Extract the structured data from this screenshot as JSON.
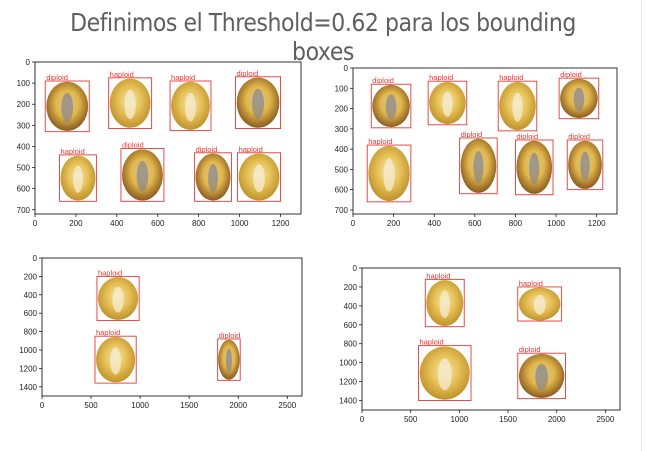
{
  "slide": {
    "title": "Definimos el Threshold=0.62 para los bounding boxes"
  },
  "colors": {
    "box": "#e53935",
    "label": "#e53935",
    "axis": "#000000",
    "tick_text": "#222222"
  },
  "chart_data": [
    {
      "type": "detection-image",
      "xlim": [
        0,
        1300
      ],
      "ylim": [
        720,
        0
      ],
      "xticks": [
        0,
        200,
        400,
        600,
        800,
        1000,
        1200
      ],
      "yticks": [
        0,
        100,
        200,
        300,
        400,
        500,
        600,
        700
      ],
      "detections": [
        {
          "label": "diploid",
          "x0": 50,
          "y0": 90,
          "x1": 265,
          "y1": 330
        },
        {
          "label": "haploid",
          "x0": 360,
          "y0": 75,
          "x1": 570,
          "y1": 315
        },
        {
          "label": "haploid",
          "x0": 660,
          "y0": 90,
          "x1": 860,
          "y1": 325
        },
        {
          "label": "diploid",
          "x0": 980,
          "y0": 70,
          "x1": 1200,
          "y1": 315
        },
        {
          "label": "haploid",
          "x0": 120,
          "y0": 440,
          "x1": 300,
          "y1": 660
        },
        {
          "label": "diploid",
          "x0": 420,
          "y0": 410,
          "x1": 630,
          "y1": 660
        },
        {
          "label": "diploid",
          "x0": 780,
          "y0": 430,
          "x1": 960,
          "y1": 660
        },
        {
          "label": "haploid",
          "x0": 990,
          "y0": 430,
          "x1": 1200,
          "y1": 660
        }
      ]
    },
    {
      "type": "detection-image",
      "xlim": [
        0,
        1300
      ],
      "ylim": [
        720,
        0
      ],
      "xticks": [
        0,
        200,
        400,
        600,
        800,
        1000,
        1200
      ],
      "yticks": [
        0,
        100,
        200,
        300,
        400,
        500,
        600,
        700
      ],
      "detections": [
        {
          "label": "diploid",
          "x0": 90,
          "y0": 80,
          "x1": 285,
          "y1": 295
        },
        {
          "label": "haploid",
          "x0": 370,
          "y0": 65,
          "x1": 560,
          "y1": 280
        },
        {
          "label": "haploid",
          "x0": 715,
          "y0": 65,
          "x1": 905,
          "y1": 310
        },
        {
          "label": "diploid",
          "x0": 1015,
          "y0": 50,
          "x1": 1210,
          "y1": 250
        },
        {
          "label": "haploid",
          "x0": 70,
          "y0": 380,
          "x1": 285,
          "y1": 660
        },
        {
          "label": "diploid",
          "x0": 525,
          "y0": 345,
          "x1": 710,
          "y1": 620
        },
        {
          "label": "diploid",
          "x0": 800,
          "y0": 355,
          "x1": 985,
          "y1": 625
        },
        {
          "label": "diploid",
          "x0": 1055,
          "y0": 355,
          "x1": 1230,
          "y1": 600
        }
      ]
    },
    {
      "type": "detection-image",
      "xlim": [
        0,
        2650
      ],
      "ylim": [
        1500,
        0
      ],
      "xticks": [
        0,
        500,
        1000,
        1500,
        2000,
        2500
      ],
      "yticks": [
        0,
        200,
        400,
        600,
        800,
        1000,
        1200,
        1400
      ],
      "detections": [
        {
          "label": "haploid",
          "x0": 560,
          "y0": 200,
          "x1": 990,
          "y1": 680
        },
        {
          "label": "haploid",
          "x0": 540,
          "y0": 850,
          "x1": 960,
          "y1": 1360
        },
        {
          "label": "diploid",
          "x0": 1790,
          "y0": 880,
          "x1": 2020,
          "y1": 1330
        }
      ]
    },
    {
      "type": "detection-image",
      "xlim": [
        0,
        2650
      ],
      "ylim": [
        1500,
        0
      ],
      "xticks": [
        0,
        500,
        1000,
        1500,
        2000,
        2500
      ],
      "yticks": [
        0,
        200,
        400,
        600,
        800,
        1000,
        1200,
        1400
      ],
      "detections": [
        {
          "label": "haploid",
          "x0": 650,
          "y0": 120,
          "x1": 1050,
          "y1": 620
        },
        {
          "label": "haploid",
          "x0": 1600,
          "y0": 200,
          "x1": 2050,
          "y1": 560
        },
        {
          "label": "haploid",
          "x0": 580,
          "y0": 820,
          "x1": 1120,
          "y1": 1400
        },
        {
          "label": "diploid",
          "x0": 1600,
          "y0": 900,
          "x1": 2090,
          "y1": 1380
        }
      ]
    }
  ]
}
